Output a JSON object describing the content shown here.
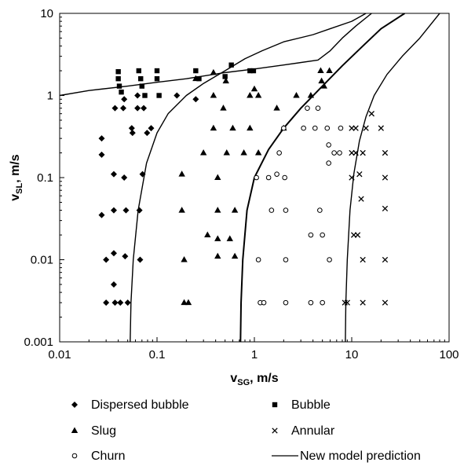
{
  "chart_data": {
    "type": "scatter",
    "title": "",
    "xlabel": {
      "main": "v",
      "sub": "SG",
      "unit": ", m/s"
    },
    "ylabel": {
      "main": "v",
      "sub": "SL",
      "unit": ", m/s"
    },
    "x_scale": "log",
    "y_scale": "log",
    "xlim": [
      0.01,
      100
    ],
    "ylim": [
      0.001,
      10
    ],
    "x_ticks": [
      {
        "value": 0.01,
        "label": "0.01"
      },
      {
        "value": 0.1,
        "label": "0.1"
      },
      {
        "value": 1,
        "label": "1"
      },
      {
        "value": 10,
        "label": "10"
      },
      {
        "value": 100,
        "label": "100"
      }
    ],
    "y_ticks": [
      {
        "value": 0.001,
        "label": "0.001"
      },
      {
        "value": 0.01,
        "label": "0.01"
      },
      {
        "value": 0.1,
        "label": "0.1"
      },
      {
        "value": 1,
        "label": "1"
      },
      {
        "value": 10,
        "label": "10"
      }
    ],
    "grid": false,
    "legend_position": "bottom",
    "legend": [
      {
        "key": "dispersed",
        "label": "Dispersed bubble",
        "marker": "diamond"
      },
      {
        "key": "bubble",
        "label": "Bubble",
        "marker": "square"
      },
      {
        "key": "slug",
        "label": "Slug",
        "marker": "triangle"
      },
      {
        "key": "annular",
        "label": "Annular",
        "marker": "cross"
      },
      {
        "key": "churn",
        "label": "Churn",
        "marker": "circle"
      },
      {
        "key": "model",
        "label": "New model prediction",
        "marker": "line"
      }
    ],
    "series": [
      {
        "key": "dispersed",
        "marker": "diamond",
        "points": [
          [
            0.027,
            0.3
          ],
          [
            0.027,
            0.19
          ],
          [
            0.027,
            0.035
          ],
          [
            0.03,
            0.003
          ],
          [
            0.03,
            0.01
          ],
          [
            0.037,
            0.7
          ],
          [
            0.036,
            0.11
          ],
          [
            0.036,
            0.04
          ],
          [
            0.036,
            0.012
          ],
          [
            0.036,
            0.005
          ],
          [
            0.037,
            0.003
          ],
          [
            0.042,
            0.003
          ],
          [
            0.046,
            0.9
          ],
          [
            0.045,
            0.7
          ],
          [
            0.046,
            0.1
          ],
          [
            0.048,
            0.04
          ],
          [
            0.047,
            0.011
          ],
          [
            0.05,
            0.003
          ],
          [
            0.055,
            0.4
          ],
          [
            0.056,
            0.35
          ],
          [
            0.063,
            0.7
          ],
          [
            0.063,
            1.0
          ],
          [
            0.073,
            0.7
          ],
          [
            0.079,
            0.35
          ],
          [
            0.071,
            0.11
          ],
          [
            0.066,
            0.04
          ],
          [
            0.067,
            0.01
          ],
          [
            0.087,
            0.4
          ],
          [
            0.16,
            1.0
          ],
          [
            0.25,
            0.9
          ]
        ]
      },
      {
        "key": "bubble",
        "marker": "square",
        "points": [
          [
            0.04,
            1.95
          ],
          [
            0.04,
            1.6
          ],
          [
            0.041,
            1.3
          ],
          [
            0.043,
            1.1
          ],
          [
            0.065,
            2.0
          ],
          [
            0.068,
            1.6
          ],
          [
            0.07,
            1.3
          ],
          [
            0.075,
            1.0
          ],
          [
            0.1,
            2.0
          ],
          [
            0.1,
            1.6
          ],
          [
            0.105,
            1.0
          ],
          [
            0.25,
            2.0
          ],
          [
            0.27,
            1.6
          ],
          [
            0.5,
            1.7
          ],
          [
            0.58,
            2.35
          ],
          [
            0.9,
            2.0
          ],
          [
            0.98,
            2.0
          ]
        ]
      },
      {
        "key": "slug",
        "marker": "triangle",
        "points": [
          [
            0.18,
            0.11
          ],
          [
            0.18,
            0.04
          ],
          [
            0.19,
            0.01
          ],
          [
            0.19,
            0.003
          ],
          [
            0.21,
            0.003
          ],
          [
            0.25,
            1.6
          ],
          [
            0.3,
            0.2
          ],
          [
            0.33,
            0.02
          ],
          [
            0.38,
            1.9
          ],
          [
            0.38,
            1.0
          ],
          [
            0.38,
            0.4
          ],
          [
            0.42,
            0.1
          ],
          [
            0.42,
            0.04
          ],
          [
            0.42,
            0.018
          ],
          [
            0.42,
            0.011
          ],
          [
            0.48,
            0.7
          ],
          [
            0.51,
            1.5
          ],
          [
            0.52,
            0.2
          ],
          [
            0.56,
            0.018
          ],
          [
            0.6,
            0.4
          ],
          [
            0.63,
            0.04
          ],
          [
            0.63,
            0.011
          ],
          [
            0.78,
            0.2
          ],
          [
            0.9,
            1.0
          ],
          [
            0.9,
            0.4
          ],
          [
            1.0,
            1.2
          ],
          [
            1.1,
            1.0
          ],
          [
            1.1,
            0.2
          ],
          [
            1.7,
            0.7
          ],
          [
            2.0,
            0.4
          ],
          [
            2.7,
            1.0
          ],
          [
            3.8,
            1.0
          ],
          [
            4.8,
            2.0
          ],
          [
            4.9,
            1.5
          ],
          [
            5.2,
            1.3
          ],
          [
            5.9,
            2.0
          ]
        ]
      },
      {
        "key": "annular",
        "marker": "cross",
        "points": [
          [
            8.5,
            0.003
          ],
          [
            9.0,
            0.003
          ],
          [
            10.0,
            0.4
          ],
          [
            10.0,
            0.2
          ],
          [
            10.0,
            0.1
          ],
          [
            10.5,
            0.02
          ],
          [
            11.0,
            0.4
          ],
          [
            11.0,
            0.2
          ],
          [
            11.5,
            0.02
          ],
          [
            12.0,
            0.11
          ],
          [
            12.5,
            0.055
          ],
          [
            13.0,
            0.2
          ],
          [
            13.0,
            0.01
          ],
          [
            13.0,
            0.003
          ],
          [
            14.0,
            0.4
          ],
          [
            16.0,
            0.6
          ],
          [
            20.0,
            0.4
          ],
          [
            22.0,
            0.2
          ],
          [
            22.0,
            0.1
          ],
          [
            22.0,
            0.042
          ],
          [
            22.0,
            0.01
          ],
          [
            22.0,
            0.003
          ]
        ]
      },
      {
        "key": "churn",
        "marker": "circle",
        "points": [
          [
            1.05,
            0.1
          ],
          [
            1.1,
            0.01
          ],
          [
            1.15,
            0.003
          ],
          [
            1.25,
            0.003
          ],
          [
            1.4,
            0.1
          ],
          [
            1.5,
            0.04
          ],
          [
            1.7,
            0.11
          ],
          [
            1.8,
            0.2
          ],
          [
            2.0,
            0.4
          ],
          [
            2.05,
            0.1
          ],
          [
            2.1,
            0.04
          ],
          [
            2.1,
            0.01
          ],
          [
            2.1,
            0.003
          ],
          [
            3.2,
            0.4
          ],
          [
            3.5,
            0.7
          ],
          [
            3.8,
            0.02
          ],
          [
            3.8,
            0.003
          ],
          [
            4.2,
            0.4
          ],
          [
            4.5,
            0.7
          ],
          [
            4.7,
            0.04
          ],
          [
            5.0,
            0.02
          ],
          [
            5.0,
            0.003
          ],
          [
            5.6,
            0.4
          ],
          [
            5.8,
            0.25
          ],
          [
            5.8,
            0.15
          ],
          [
            5.9,
            0.01
          ],
          [
            6.6,
            0.2
          ],
          [
            7.7,
            0.4
          ],
          [
            7.5,
            0.2
          ]
        ]
      },
      {
        "key": "model",
        "type": "line",
        "lines": [
          [
            [
              0.01,
              1.0
            ],
            [
              0.02,
              1.15
            ],
            [
              0.05,
              1.3
            ],
            [
              0.1,
              1.45
            ],
            [
              0.2,
              1.6
            ],
            [
              0.5,
              1.9
            ],
            [
              1.0,
              2.1
            ],
            [
              2.0,
              2.35
            ],
            [
              4.5,
              2.7
            ],
            [
              6.0,
              3.5
            ],
            [
              8.0,
              5.0
            ],
            [
              11.0,
              7.0
            ],
            [
              16.0,
              10.0
            ]
          ],
          [
            [
              0.053,
              0.001
            ],
            [
              0.054,
              0.003
            ],
            [
              0.057,
              0.01
            ],
            [
              0.064,
              0.04
            ],
            [
              0.078,
              0.15
            ],
            [
              0.1,
              0.35
            ],
            [
              0.13,
              0.6
            ],
            [
              0.2,
              1.0
            ],
            [
              0.3,
              1.4
            ],
            [
              0.5,
              2.0
            ],
            [
              0.8,
              2.8
            ],
            [
              1.2,
              3.5
            ],
            [
              2.0,
              4.5
            ],
            [
              4.0,
              5.5
            ],
            [
              6.0,
              6.5
            ],
            [
              10.0,
              8.0
            ],
            [
              14.0,
              10.0
            ]
          ],
          [
            [
              0.72,
              0.001
            ],
            [
              0.73,
              0.003
            ],
            [
              0.76,
              0.01
            ],
            [
              0.84,
              0.04
            ],
            [
              1.0,
              0.1
            ],
            [
              1.4,
              0.22
            ],
            [
              2.0,
              0.4
            ],
            [
              3.0,
              0.7
            ],
            [
              5.0,
              1.3
            ],
            [
              8.0,
              2.3
            ],
            [
              13.0,
              4.0
            ],
            [
              20.0,
              6.5
            ],
            [
              35.0,
              10.0
            ]
          ],
          [
            [
              8.6,
              0.001
            ],
            [
              8.7,
              0.003
            ],
            [
              9.0,
              0.01
            ],
            [
              9.6,
              0.04
            ],
            [
              10.5,
              0.11
            ],
            [
              12.0,
              0.28
            ],
            [
              14.0,
              0.55
            ],
            [
              17.0,
              1.0
            ],
            [
              23.0,
              1.8
            ],
            [
              33.0,
              3.0
            ],
            [
              50.0,
              5.0
            ],
            [
              80.0,
              10.0
            ]
          ]
        ]
      }
    ]
  }
}
